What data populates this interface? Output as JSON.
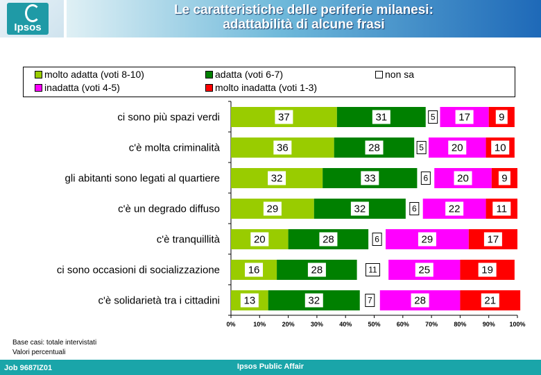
{
  "header": {
    "logo_text": "Ipsos",
    "title_line1": "Le caratteristiche delle periferie milanesi:",
    "title_line2": "adattabilità di alcune frasi"
  },
  "chart_data": {
    "type": "bar",
    "orientation": "horizontal",
    "stacked": true,
    "categories": [
      "ci sono più spazi verdi",
      "c'è molta criminalità",
      "gli abitanti sono legati al quartiere",
      "c'è un degrado diffuso",
      "c'è tranquillità",
      "ci sono occasioni di socializzazione",
      "c'è solidarietà tra i cittadini"
    ],
    "series": [
      {
        "name": "molto adatta (voti 8-10)",
        "color": "#99cc00",
        "values": [
          37,
          36,
          32,
          29,
          20,
          16,
          13
        ]
      },
      {
        "name": "adatta (voti 6-7)",
        "color": "#008000",
        "values": [
          31,
          28,
          33,
          32,
          28,
          28,
          32
        ]
      },
      {
        "name": "non sa",
        "color": "#ffffff",
        "values": [
          5,
          5,
          6,
          6,
          6,
          11,
          7
        ]
      },
      {
        "name": "inadatta (voti 4-5)",
        "color": "#ff00ff",
        "values": [
          17,
          20,
          20,
          22,
          29,
          25,
          28
        ]
      },
      {
        "name": "molto inadatta (voti 1-3)",
        "color": "#ff0000",
        "values": [
          9,
          10,
          9,
          11,
          17,
          19,
          21
        ]
      }
    ],
    "xlim": [
      0,
      100
    ],
    "x_ticks": [
      "0%",
      "10%",
      "20%",
      "30%",
      "40%",
      "50%",
      "60%",
      "70%",
      "80%",
      "90%",
      "100%"
    ],
    "legend_position": "top"
  },
  "footer": {
    "note1": "Base casi: totale intervistati",
    "note2": "Valori percentuali",
    "job": "Job 9687IZ01",
    "company": "Ipsos Public Affair"
  }
}
